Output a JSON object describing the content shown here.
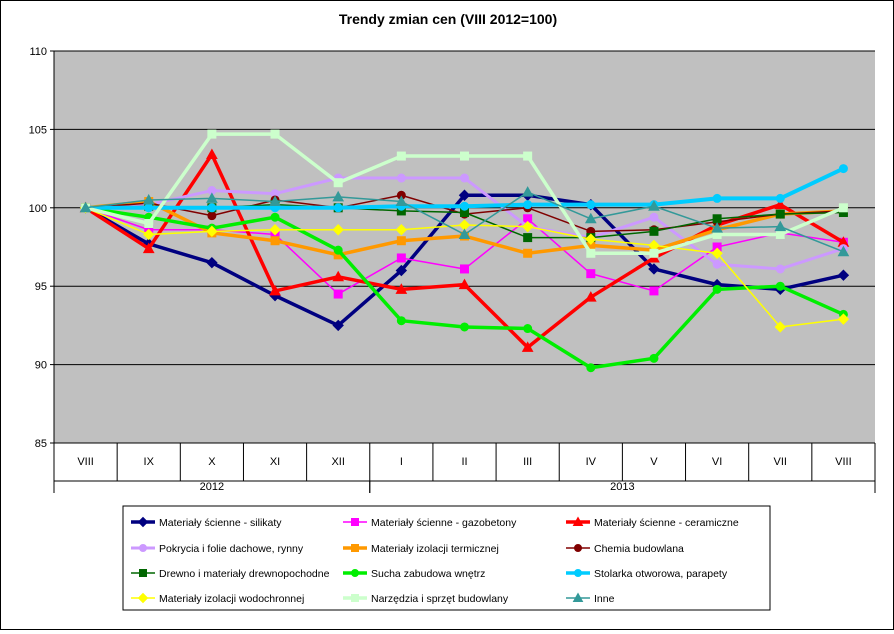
{
  "chart_data": {
    "type": "line",
    "title": "Trendy zmian cen (VIII 2012=100)",
    "xlabel": "",
    "ylabel": "",
    "ylim": [
      85,
      110
    ],
    "y_ticks": [
      85,
      90,
      95,
      100,
      105,
      110
    ],
    "grid": "horizontal",
    "legend_position": "bottom",
    "categories": [
      "VIII",
      "IX",
      "X",
      "XI",
      "XII",
      "I",
      "II",
      "III",
      "IV",
      "V",
      "VI",
      "VII",
      "VIII"
    ],
    "year_groups": [
      {
        "label": "2012",
        "from": 0,
        "to": 4
      },
      {
        "label": "2013",
        "from": 5,
        "to": 12
      }
    ],
    "series": [
      {
        "name": "Materiały ścienne - silikaty",
        "color": "#000080",
        "marker": "diamond",
        "width": 3.5,
        "values": [
          100,
          97.7,
          96.5,
          94.4,
          92.5,
          96.0,
          100.8,
          100.8,
          100.2,
          96.1,
          95.1,
          94.8,
          95.7
        ]
      },
      {
        "name": "Materiały ścienne - gazobetony",
        "color": "#ff00ff",
        "marker": "square",
        "width": 1.5,
        "values": [
          100,
          98.6,
          98.6,
          98.3,
          94.5,
          96.8,
          96.1,
          99.3,
          95.8,
          94.7,
          97.5,
          98.4,
          97.8
        ]
      },
      {
        "name": "Materiały ścienne - ceramiczne",
        "color": "#ff0000",
        "marker": "triangle",
        "width": 3.5,
        "values": [
          100,
          97.4,
          103.4,
          94.7,
          95.6,
          94.8,
          95.1,
          91.1,
          94.3,
          96.8,
          98.9,
          100.2,
          97.8
        ]
      },
      {
        "name": "Pokrycia i folie dachowe, rynny",
        "color": "#cc99ff",
        "marker": "circle",
        "width": 3,
        "values": [
          100,
          100.2,
          101.1,
          100.9,
          101.9,
          101.9,
          101.9,
          98.8,
          98.1,
          99.4,
          96.4,
          96.1,
          97.4
        ]
      },
      {
        "name": "Materiały izolacji termicznej",
        "color": "#ff9900",
        "marker": "square",
        "width": 3.5,
        "values": [
          100,
          100.4,
          98.4,
          97.9,
          97.0,
          97.9,
          98.2,
          97.1,
          97.6,
          97.3,
          98.6,
          99.6,
          99.8
        ]
      },
      {
        "name": "Chemia budowlana",
        "color": "#800000",
        "marker": "circle",
        "width": 1.5,
        "values": [
          100,
          100.3,
          99.5,
          100.5,
          100.0,
          100.8,
          99.6,
          100.0,
          98.5,
          98.6,
          99.1,
          99.6,
          99.8
        ]
      },
      {
        "name": "Drewno i materiały drewnopochodne",
        "color": "#006600",
        "marker": "square",
        "width": 1.5,
        "values": [
          100,
          100.1,
          100.0,
          100.2,
          100.0,
          99.8,
          99.7,
          98.1,
          98.1,
          98.5,
          99.3,
          99.6,
          99.7
        ]
      },
      {
        "name": "Sucha zabudowa wnętrz",
        "color": "#00ee00",
        "marker": "circle",
        "width": 3.5,
        "values": [
          100,
          99.4,
          98.7,
          99.4,
          97.3,
          92.8,
          92.4,
          92.3,
          89.8,
          90.4,
          94.8,
          95.0,
          93.2
        ]
      },
      {
        "name": "Stolarka otworowa, parapety",
        "color": "#00ccff",
        "marker": "circle",
        "width": 4,
        "values": [
          100,
          100.0,
          100.0,
          100.0,
          100.0,
          100.1,
          100.1,
          100.2,
          100.2,
          100.2,
          100.6,
          100.6,
          102.5
        ]
      },
      {
        "name": "Materiały izolacji wodochronnej",
        "color": "#ffff00",
        "marker": "diamond",
        "width": 1.5,
        "values": [
          100,
          98.3,
          98.5,
          98.6,
          98.6,
          98.6,
          98.9,
          98.8,
          98.0,
          97.6,
          97.1,
          92.4,
          92.9
        ]
      },
      {
        "name": "Narzędzia i sprzęt budowlany",
        "color": "#ccffcc",
        "marker": "square",
        "width": 3.5,
        "values": [
          100,
          99.0,
          104.7,
          104.7,
          101.6,
          103.3,
          103.3,
          103.3,
          97.1,
          97.1,
          98.3,
          98.3,
          100.0
        ]
      },
      {
        "name": "Inne",
        "color": "#339999",
        "marker": "triangle",
        "width": 1.5,
        "values": [
          100,
          100.5,
          100.6,
          100.4,
          100.7,
          100.4,
          98.3,
          101.0,
          99.3,
          100.1,
          98.7,
          98.8,
          97.2
        ]
      }
    ]
  }
}
